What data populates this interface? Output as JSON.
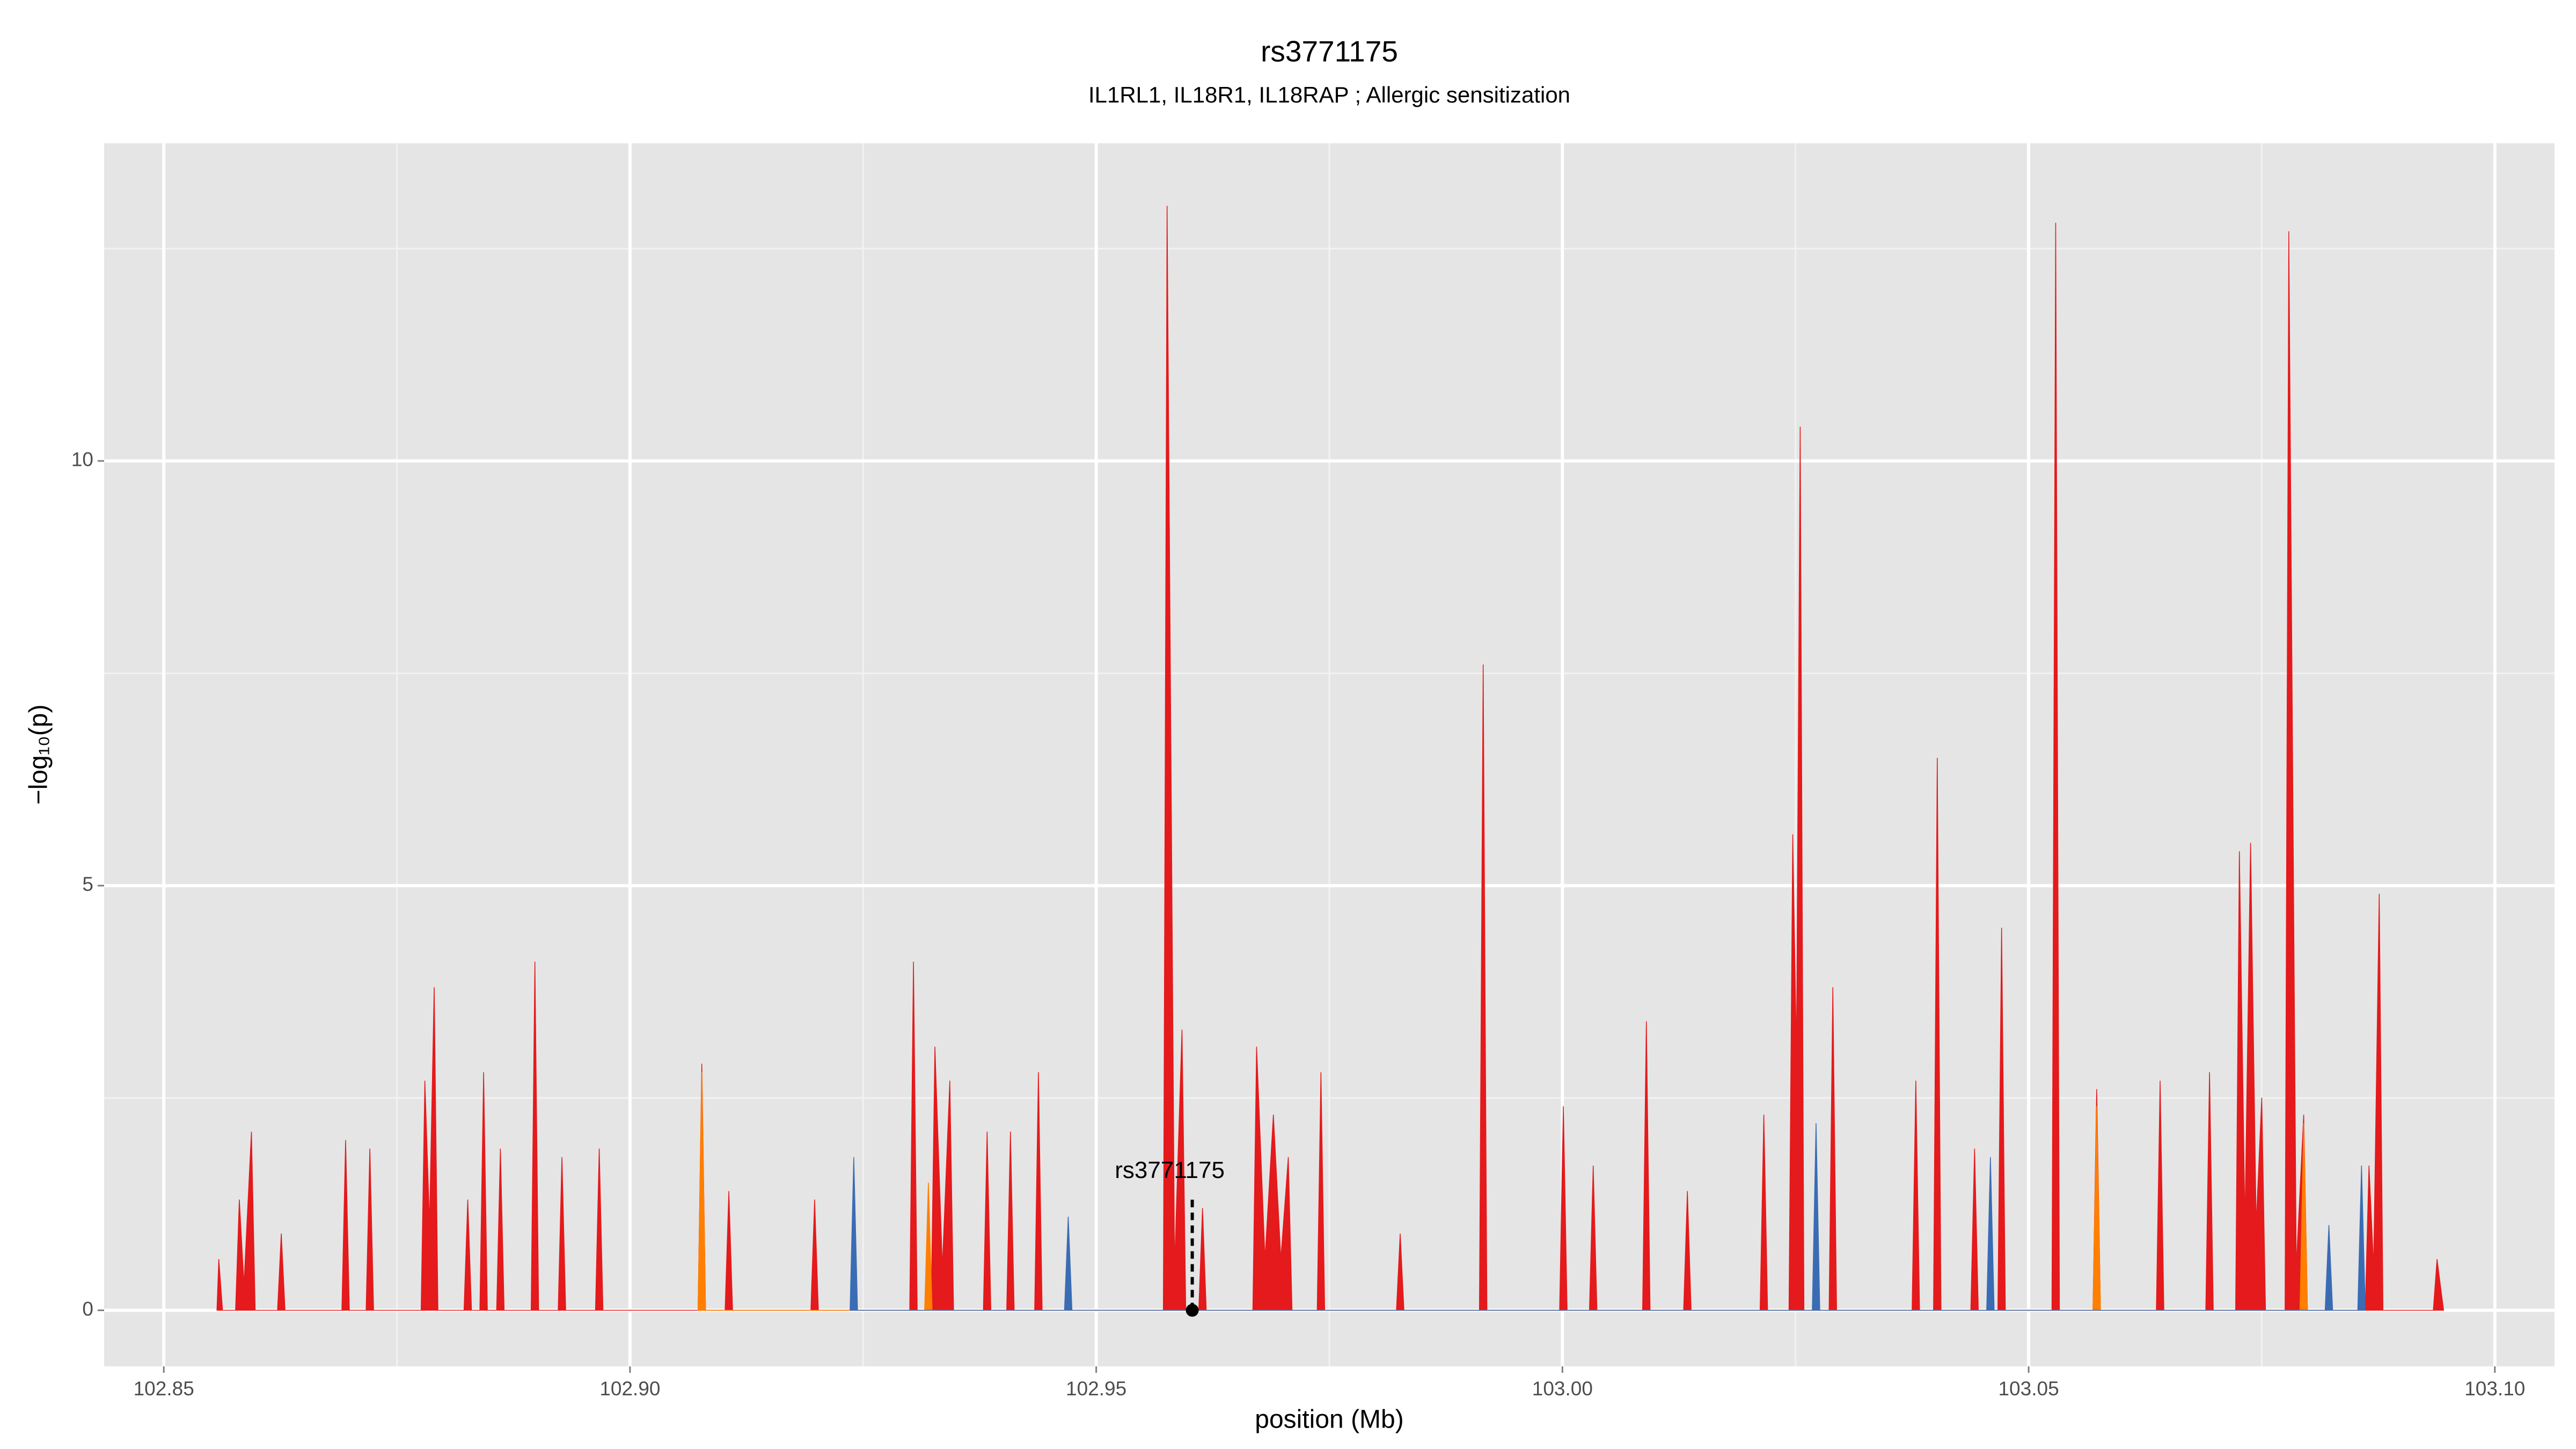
{
  "chart_data": {
    "type": "area",
    "title": "rs3771175",
    "subtitle": "IL1RL1, IL18R1, IL18RAP ; Allergic sensitization",
    "x_label": "position (Mb)",
    "y_label": "−log₁₀(p)",
    "xlim": [
      102.8436,
      103.1064
    ],
    "ylim": [
      -0.66,
      13.74
    ],
    "xticks": [
      102.85,
      {
        "value": 102.9,
        "label": "102.90"
      },
      102.95,
      {
        "value": 103,
        "label": "103.00"
      },
      103.05,
      {
        "value": 103.1,
        "label": "103.10"
      }
    ],
    "yticks": [
      0,
      5,
      10
    ],
    "grid": true,
    "series": [
      {
        "color": "#e41a1c",
        "x": [
          102.8557,
          102.8559,
          102.8563,
          102.8577,
          102.8581,
          102.8586,
          102.8594,
          102.8598,
          102.8622,
          102.8626,
          102.863,
          102.8691,
          102.8695,
          102.8699,
          102.8717,
          102.8721,
          102.8725,
          102.8776,
          102.878,
          102.8785,
          102.879,
          102.8794,
          102.8822,
          102.8826,
          102.883,
          102.8839,
          102.8843,
          102.8847,
          102.8857,
          102.8861,
          102.8865,
          102.8894,
          102.8898,
          102.8902,
          102.8923,
          102.8927,
          102.8931,
          102.8963,
          102.8967,
          102.8971,
          102.9073,
          102.9077,
          102.9081,
          102.9102,
          102.9106,
          102.911,
          102.9194,
          102.9198,
          102.9202,
          102.93,
          102.9304,
          102.9308,
          102.9323,
          102.9327,
          102.9335,
          102.9343,
          102.9347,
          102.9379,
          102.9383,
          102.9387,
          102.9404,
          102.9408,
          102.9412,
          102.9434,
          102.9438,
          102.9442,
          102.9572,
          102.9576,
          102.9584,
          102.9592,
          102.9596,
          102.961,
          102.9614,
          102.9618,
          102.9668,
          102.9672,
          102.9681,
          102.969,
          102.9698,
          102.9706,
          102.971,
          102.9737,
          102.9741,
          102.9745,
          102.9822,
          102.9826,
          102.983,
          102.9911,
          102.9915,
          102.9919,
          102.9997,
          103.0001,
          103.0005,
          103.0029,
          103.0033,
          103.0037,
          103.0086,
          103.009,
          103.0094,
          103.013,
          103.0134,
          103.0138,
          103.0212,
          103.0216,
          103.022,
          103.0243,
          103.0247,
          103.0251,
          103.0255,
          103.0259,
          103.0286,
          103.029,
          103.0294,
          103.0375,
          103.0379,
          103.0383,
          103.0398,
          103.0402,
          103.0406,
          103.0438,
          103.0442,
          103.0446,
          103.0467,
          103.0471,
          103.0475,
          103.0525,
          103.0529,
          103.0533,
          103.0569,
          103.0573,
          103.0577,
          103.0637,
          103.0641,
          103.0645,
          103.069,
          103.0694,
          103.0698,
          103.0722,
          103.0726,
          103.0732,
          103.0738,
          103.0744,
          103.075,
          103.0754,
          103.0775,
          103.0779,
          103.0787,
          103.0795,
          103.0799,
          103.0861,
          103.0865,
          103.087,
          103.0876,
          103.088,
          103.0934,
          103.0938,
          103.0945
        ],
        "values": [
          0,
          0.6,
          0,
          0,
          1.3,
          0.3,
          2.1,
          0,
          0,
          0.9,
          0,
          0,
          2.0,
          0,
          0,
          1.9,
          0,
          0,
          2.7,
          1.0,
          3.8,
          0,
          0,
          1.3,
          0,
          0,
          2.8,
          0,
          0,
          1.9,
          0,
          0,
          4.1,
          0,
          0,
          1.8,
          0,
          0,
          1.9,
          0,
          0,
          2.9,
          0,
          0,
          1.4,
          0,
          0,
          1.3,
          0,
          0,
          4.1,
          0,
          0,
          3.1,
          0.5,
          2.7,
          0,
          0,
          2.1,
          0,
          0,
          2.1,
          0,
          0,
          2.8,
          0,
          0,
          13.0,
          0.5,
          3.3,
          0,
          0,
          1.2,
          0,
          0,
          3.1,
          0.6,
          2.3,
          0.6,
          1.8,
          0,
          0,
          2.8,
          0,
          0,
          0.9,
          0,
          0,
          7.6,
          0,
          0,
          2.4,
          0,
          0,
          1.7,
          0,
          0,
          3.4,
          0,
          0,
          1.4,
          0,
          0,
          2.3,
          0,
          0,
          5.6,
          3.0,
          10.4,
          0,
          0,
          3.8,
          0,
          0,
          2.7,
          0,
          0,
          6.5,
          0,
          0,
          1.9,
          0,
          0,
          4.5,
          0,
          0,
          12.8,
          0,
          0,
          2.6,
          0,
          0,
          2.7,
          0,
          0,
          2.8,
          0,
          0,
          5.4,
          1.0,
          5.5,
          1.0,
          2.5,
          0,
          0,
          12.7,
          0.5,
          2.3,
          0,
          0,
          1.7,
          0.5,
          4.9,
          0,
          0,
          0.6,
          0
        ]
      },
      {
        "color": "#ff7f00",
        "x": [
          102.9073,
          102.9077,
          102.9081,
          102.9316,
          102.932,
          102.9324,
          103.0569,
          103.0573,
          103.0577,
          103.0791,
          103.0795,
          103.0799
        ],
        "values": [
          0,
          2.8,
          0,
          0,
          1.5,
          0,
          0,
          2.4,
          0,
          0,
          2.2,
          0
        ]
      },
      {
        "color": "#3a6cb4",
        "x": [
          102.9236,
          102.924,
          102.9244,
          102.9466,
          102.947,
          102.9474,
          103.0268,
          103.0272,
          103.0276,
          103.0455,
          103.0459,
          103.0463,
          103.0818,
          103.0822,
          103.0826,
          103.0853,
          103.0857,
          103.0861
        ],
        "values": [
          0,
          1.8,
          0,
          0,
          1.1,
          0,
          0,
          2.2,
          0,
          0,
          1.8,
          0,
          0,
          1.0,
          0,
          0,
          1.7,
          0
        ]
      }
    ],
    "annotation": {
      "text": "rs3771175",
      "x": 102.9603,
      "y": 0
    }
  }
}
